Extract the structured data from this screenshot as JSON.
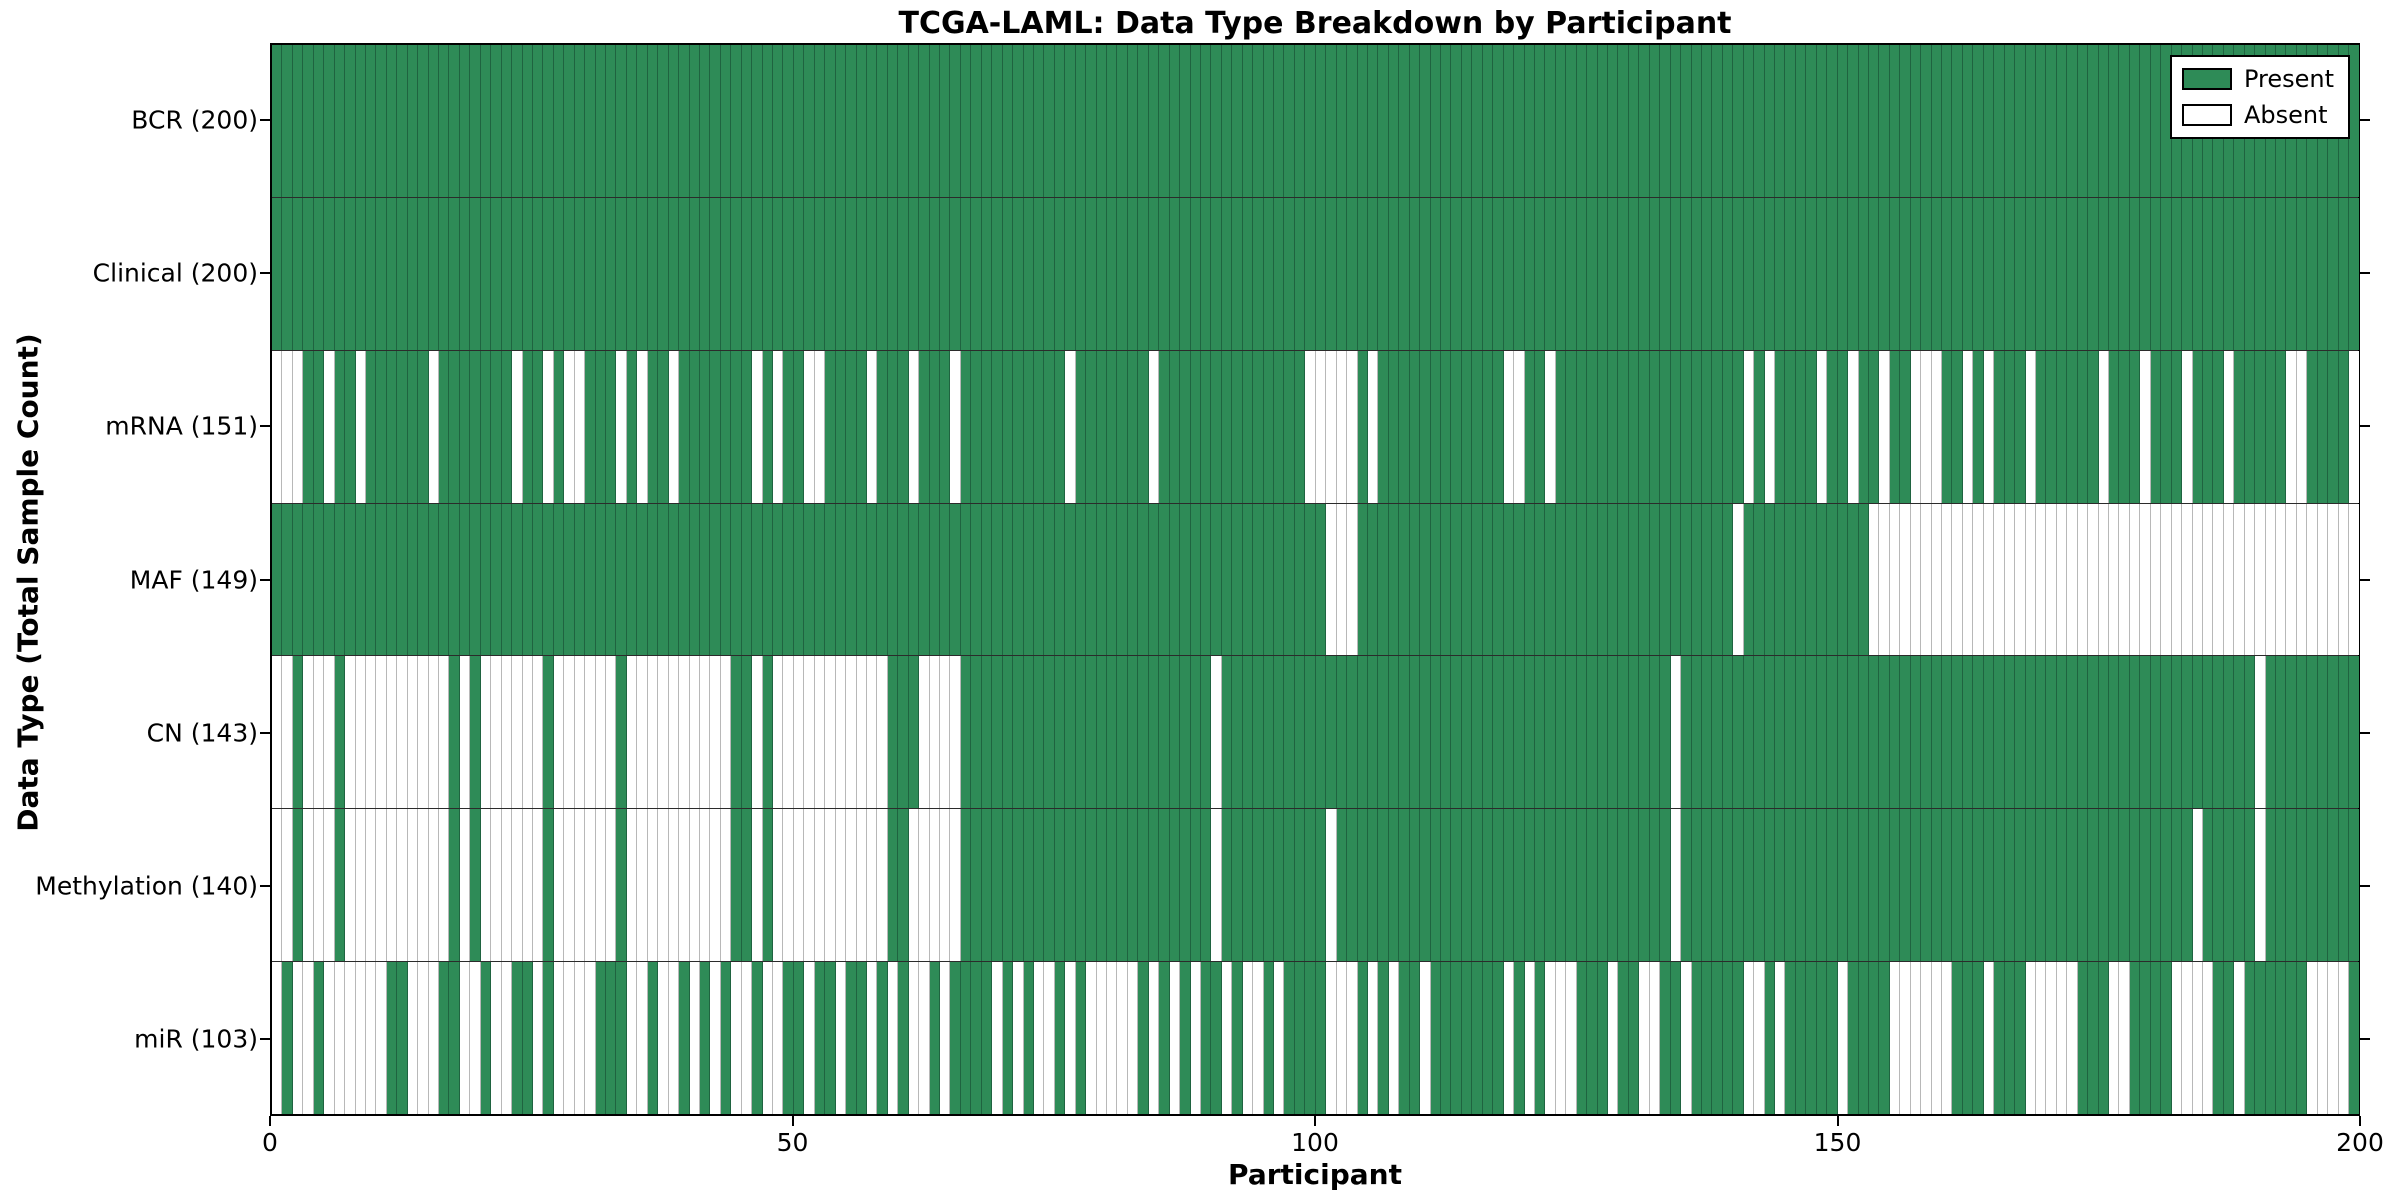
{
  "title": "TCGA-LAML: Data Type Breakdown by Participant",
  "xlabel": "Participant",
  "ylabel": "Data Type (Total Sample Count)",
  "legend": {
    "present_label": "Present",
    "absent_label": "Absent"
  },
  "colors": {
    "present": "#2e8b57",
    "absent": "#ffffff",
    "present_edge": "#1f6340",
    "absent_edge": "#b8b8b8",
    "row_divider": "#2b2b2b",
    "plot_border": "#000000"
  },
  "chart_data": {
    "type": "heatmap",
    "title": "TCGA-LAML: Data Type Breakdown by Participant",
    "xlabel": "Participant",
    "ylabel": "Data Type (Total Sample Count)",
    "n_participants": 200,
    "x_axis": {
      "min": 0,
      "max": 200,
      "ticks": [
        0,
        50,
        100,
        150,
        200
      ]
    },
    "legend_entries": [
      "Present",
      "Absent"
    ],
    "legend_position": "upper right",
    "rows": [
      {
        "label": "BCR (200)",
        "name": "BCR",
        "present_count": 200,
        "absent": []
      },
      {
        "label": "Clinical (200)",
        "name": "Clinical",
        "present_count": 200,
        "absent": []
      },
      {
        "label": "mRNA (151)",
        "name": "mRNA",
        "present_count": 151,
        "absent": [
          0,
          1,
          2,
          5,
          8,
          15,
          23,
          26,
          28,
          29,
          33,
          35,
          38,
          46,
          48,
          51,
          52,
          57,
          61,
          65,
          76,
          84,
          99,
          100,
          101,
          102,
          103,
          105,
          118,
          119,
          122,
          141,
          143,
          148,
          151,
          154,
          157,
          158,
          159,
          162,
          164,
          168,
          175,
          179,
          183,
          187,
          193,
          194,
          199
        ]
      },
      {
        "label": "MAF (149)",
        "name": "MAF",
        "present_count": 149,
        "absent": [
          101,
          102,
          103,
          140,
          153,
          154,
          155,
          156,
          157,
          158,
          159,
          160,
          161,
          162,
          163,
          164,
          165,
          166,
          167,
          168,
          169,
          170,
          171,
          172,
          173,
          174,
          175,
          176,
          177,
          178,
          179,
          180,
          181,
          182,
          183,
          184,
          185,
          186,
          187,
          188,
          189,
          190,
          191,
          192,
          193,
          194,
          195,
          196,
          197,
          198,
          199
        ]
      },
      {
        "label": "CN (143)",
        "name": "CN",
        "present_count": 143,
        "absent": [
          0,
          1,
          3,
          4,
          5,
          7,
          8,
          9,
          10,
          11,
          12,
          13,
          14,
          15,
          16,
          18,
          20,
          21,
          22,
          23,
          24,
          25,
          27,
          28,
          29,
          30,
          31,
          32,
          34,
          35,
          36,
          37,
          38,
          39,
          40,
          41,
          42,
          43,
          46,
          48,
          49,
          50,
          51,
          52,
          53,
          54,
          55,
          56,
          57,
          58,
          62,
          63,
          64,
          65,
          90,
          134,
          190
        ]
      },
      {
        "label": "Methylation (140)",
        "name": "Methylation",
        "present_count": 140,
        "absent": [
          0,
          1,
          3,
          4,
          5,
          7,
          8,
          9,
          10,
          11,
          12,
          13,
          14,
          15,
          16,
          18,
          20,
          21,
          22,
          23,
          24,
          25,
          27,
          28,
          29,
          30,
          31,
          32,
          34,
          35,
          36,
          37,
          38,
          39,
          40,
          41,
          42,
          43,
          46,
          48,
          49,
          50,
          51,
          52,
          53,
          54,
          55,
          56,
          57,
          58,
          61,
          62,
          63,
          64,
          65,
          90,
          101,
          134,
          184,
          190
        ]
      },
      {
        "label": "miR (103)",
        "name": "miR",
        "present_count": 103,
        "absent": [
          0,
          2,
          3,
          5,
          6,
          7,
          8,
          9,
          10,
          13,
          14,
          15,
          18,
          19,
          21,
          22,
          25,
          27,
          28,
          29,
          30,
          34,
          35,
          37,
          38,
          40,
          42,
          44,
          45,
          47,
          48,
          51,
          54,
          57,
          59,
          61,
          62,
          64,
          69,
          71,
          73,
          74,
          76,
          78,
          79,
          80,
          81,
          82,
          84,
          86,
          88,
          91,
          93,
          94,
          96,
          101,
          102,
          103,
          105,
          107,
          110,
          118,
          120,
          122,
          123,
          124,
          128,
          131,
          132,
          135,
          141,
          142,
          144,
          150,
          155,
          156,
          157,
          158,
          159,
          160,
          164,
          168,
          169,
          170,
          171,
          172,
          176,
          177,
          182,
          183,
          184,
          185,
          188,
          195,
          196,
          197,
          198
        ]
      }
    ]
  }
}
